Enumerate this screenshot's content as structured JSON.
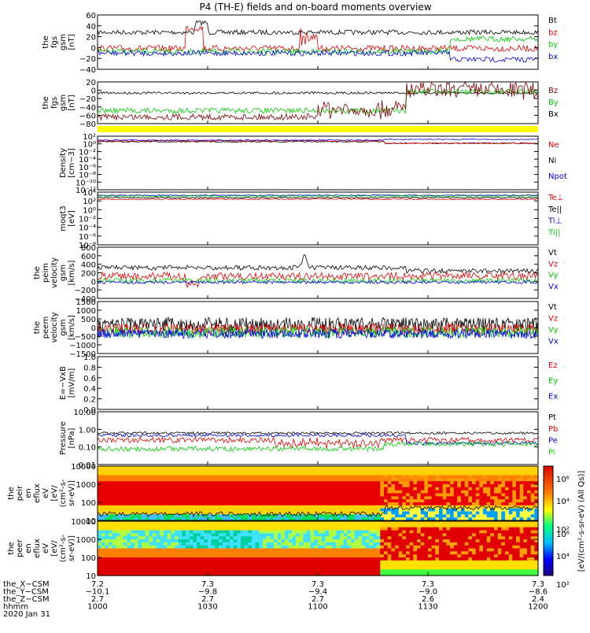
{
  "title": "P4 (TH-E) fields and on-board moments overview",
  "colors": {
    "black": "#000000",
    "red": "#e60000",
    "green": "#00d000",
    "blue": "#0000e6",
    "darkred": "#800000",
    "yellow": "#ffff00",
    "purple": "#800080"
  },
  "chart_data": [
    {
      "id": "fgs",
      "type": "line",
      "ylabel": [
        "the",
        "fgs",
        "gsm",
        "[nT]"
      ],
      "yticks": [
        "60",
        "40",
        "20",
        "0",
        "−20",
        "−40"
      ],
      "legend": [
        {
          "name": "Bt",
          "color": "black"
        },
        {
          "name": "bz",
          "color": "red"
        },
        {
          "name": "by",
          "color": "green"
        },
        {
          "name": "bx",
          "color": "blue"
        }
      ]
    },
    {
      "id": "fgs2",
      "type": "line",
      "ylabel": [
        "the",
        "fgs",
        "gsm",
        "[nT]"
      ],
      "yticks": [
        "20",
        "0",
        "−20",
        "−40",
        "−60",
        "−80"
      ],
      "legend": [
        {
          "name": "Bz",
          "color": "darkred"
        },
        {
          "name": "By",
          "color": "green"
        },
        {
          "name": "Bx",
          "color": "black"
        }
      ]
    },
    {
      "id": "density",
      "type": "line",
      "ylabel": [
        "Density",
        "[cm−3]"
      ],
      "yticks": [
        "10²",
        "10⁰",
        "10⁻²",
        "10⁻⁴",
        "10⁻⁶",
        "10⁻⁸",
        "10⁻¹⁰",
        "10⁻¹²"
      ],
      "legend": [
        {
          "name": "Ne",
          "color": "red"
        },
        {
          "name": "Ni",
          "color": "black"
        },
        {
          "name": "Npot",
          "color": "blue"
        }
      ]
    },
    {
      "id": "temp",
      "type": "line",
      "ylabel": [
        "moqt3",
        "[eV]"
      ],
      "yticks": [
        "10⁴",
        "10²",
        "10⁰",
        "10⁻²",
        "10⁻⁴",
        "10⁻⁶",
        "10⁻⁸"
      ],
      "legend": [
        {
          "name": "Te⊥",
          "color": "red"
        },
        {
          "name": "Te||",
          "color": "black"
        },
        {
          "name": "Ti⊥",
          "color": "blue"
        },
        {
          "name": "Ti||",
          "color": "green"
        }
      ]
    },
    {
      "id": "peim",
      "type": "line",
      "ylabel": [
        "the",
        "peim",
        "velocity",
        "gsm",
        "[km/s]"
      ],
      "yticks": [
        "800",
        "600",
        "400",
        "200",
        "0",
        "−200",
        "−400"
      ],
      "legend": [
        {
          "name": "Vt",
          "color": "black"
        },
        {
          "name": "Vz",
          "color": "red"
        },
        {
          "name": "Vy",
          "color": "green"
        },
        {
          "name": "Vx",
          "color": "blue"
        }
      ]
    },
    {
      "id": "peem",
      "type": "line",
      "ylabel": [
        "the",
        "peem",
        "velocity",
        "gsm",
        "[km/s]"
      ],
      "yticks": [
        "1500",
        "1000",
        "500",
        "0",
        "−500",
        "−1000",
        "−1500"
      ],
      "legend": [
        {
          "name": "Vt",
          "color": "black"
        },
        {
          "name": "Vz",
          "color": "red"
        },
        {
          "name": "Vy",
          "color": "green"
        },
        {
          "name": "Vx",
          "color": "blue"
        }
      ]
    },
    {
      "id": "efield",
      "type": "line",
      "ylabel": [
        "E=−VxB",
        "[mV/m]"
      ],
      "yticks": [
        "1.0",
        "0.8",
        "0.6",
        "0.4",
        "0.2",
        "0.0"
      ],
      "legend": [
        {
          "name": "Ez",
          "color": "red"
        },
        {
          "name": "Ey",
          "color": "green"
        },
        {
          "name": "Ex",
          "color": "blue"
        }
      ]
    },
    {
      "id": "pressure",
      "type": "line",
      "ylabel": [
        "Pressure",
        "[nPa]"
      ],
      "yticks": [
        "10.00",
        "1.00",
        "0.10",
        "0.01"
      ],
      "legend": [
        {
          "name": "Pt",
          "color": "black"
        },
        {
          "name": "Pb",
          "color": "red"
        },
        {
          "name": "Pe",
          "color": "blue"
        },
        {
          "name": "Pi",
          "color": "green"
        }
      ]
    },
    {
      "id": "peir",
      "type": "heatmap",
      "ylabel": [
        "the",
        "peir",
        "en",
        "eflux",
        "eV",
        "[eV/",
        "(cm²-s-",
        "sr-eV)]"
      ],
      "yticks": [
        "10000",
        "1000",
        "100",
        "10"
      ]
    },
    {
      "id": "peer",
      "type": "heatmap",
      "ylabel": [
        "the",
        "peer",
        "en",
        "eflux",
        "eV",
        "[eV/",
        "(cm²-s-",
        "sr-eV)]"
      ],
      "yticks": [
        "10000",
        "1000",
        "100",
        "10"
      ]
    }
  ],
  "colorbar": {
    "ticks": [
      "10⁶",
      "10⁴",
      "10²"
    ],
    "label": "[eV/(cm²-s-sr-eV) (All Qs)]"
  },
  "xaxis": {
    "rows": [
      {
        "label": "the_X−CSM",
        "values": [
          "7.2",
          "7.3",
          "7.3",
          "7.3",
          "7.3"
        ]
      },
      {
        "label": "the_Y−CSM",
        "values": [
          "−10.1",
          "−9.8",
          "−9.4",
          "−9.0",
          "−8.6"
        ]
      },
      {
        "label": "the_Z−CSM",
        "values": [
          "2.7",
          "2.7",
          "2.7",
          "2.6",
          "2.4"
        ]
      },
      {
        "label": "hhmm",
        "values": [
          "1000",
          "1030",
          "1100",
          "1130",
          "1200"
        ]
      }
    ],
    "date": "2020 Jan 31"
  }
}
